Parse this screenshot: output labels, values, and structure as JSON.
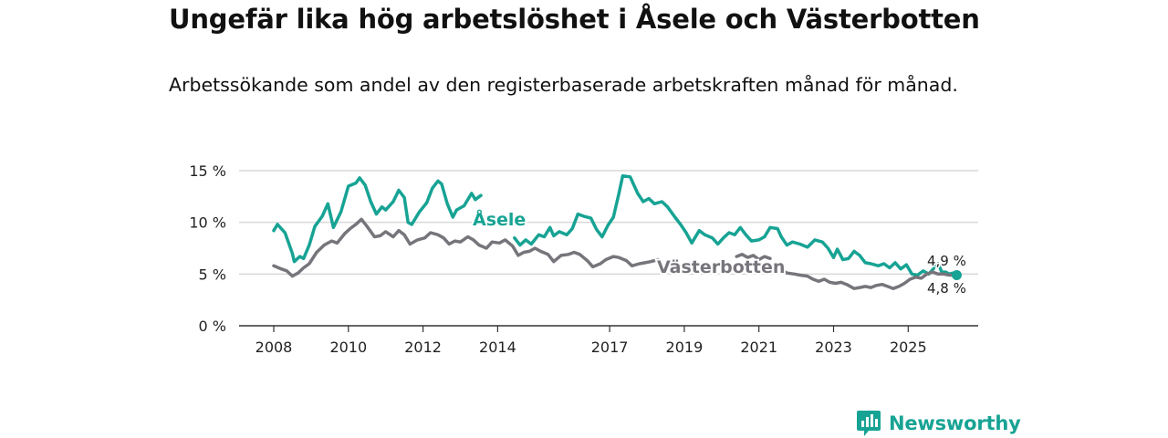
{
  "title": "Ungefär lika hög arbetslöshet i Åsele och Västerbotten",
  "subtitle": "Arbetssökande som andel av den registerbaserade arbetskraften månad för månad.",
  "brand": "Newsworthy",
  "colors": {
    "asele": "#17a394",
    "vasterbotten": "#77757b",
    "grid": "#d9d9d9",
    "axis": "#333333"
  },
  "chart_data": {
    "type": "line",
    "title": "Ungefär lika hög arbetslöshet i Åsele och Västerbotten",
    "xlabel": "",
    "ylabel": "",
    "ylim": [
      0,
      15
    ],
    "xlim": [
      2007.6,
      2026.4
    ],
    "grid": true,
    "legend": "inline labels",
    "y_ticks": [
      0,
      5,
      10,
      15
    ],
    "y_tick_labels": [
      "0 %",
      "5 %",
      "10 %",
      "15 %"
    ],
    "x_ticks": [
      2008,
      2010,
      2012,
      2014,
      2017,
      2019,
      2021,
      2023,
      2025
    ],
    "x_tick_labels": [
      "2008",
      "2010",
      "2012",
      "2014",
      "2017",
      "2019",
      "2021",
      "2023",
      "2025"
    ],
    "series": [
      {
        "name": "Åsele",
        "label": "Åsele",
        "end_label": "4,9 %",
        "points": [
          [
            2008.0,
            9.2
          ],
          [
            2008.1,
            9.8
          ],
          [
            2008.3,
            9.0
          ],
          [
            2008.5,
            7.0
          ],
          [
            2008.55,
            6.2
          ],
          [
            2008.7,
            6.7
          ],
          [
            2008.8,
            6.5
          ],
          [
            2008.95,
            7.8
          ],
          [
            2009.1,
            9.6
          ],
          [
            2009.3,
            10.6
          ],
          [
            2009.45,
            11.8
          ],
          [
            2009.6,
            9.5
          ],
          [
            2009.8,
            11.0
          ],
          [
            2010.0,
            13.5
          ],
          [
            2010.2,
            13.8
          ],
          [
            2010.3,
            14.3
          ],
          [
            2010.45,
            13.6
          ],
          [
            2010.6,
            12.0
          ],
          [
            2010.75,
            10.8
          ],
          [
            2010.9,
            11.5
          ],
          [
            2011.0,
            11.2
          ],
          [
            2011.2,
            12.0
          ],
          [
            2011.35,
            13.1
          ],
          [
            2011.5,
            12.4
          ],
          [
            2011.6,
            10.0
          ],
          [
            2011.7,
            9.8
          ],
          [
            2011.9,
            11.0
          ],
          [
            2012.1,
            11.9
          ],
          [
            2012.25,
            13.3
          ],
          [
            2012.4,
            14.0
          ],
          [
            2012.5,
            13.7
          ],
          [
            2012.65,
            11.8
          ],
          [
            2012.8,
            10.5
          ],
          [
            2012.9,
            11.2
          ],
          [
            2013.1,
            11.6
          ],
          [
            2013.3,
            12.8
          ],
          [
            2013.4,
            12.2
          ],
          [
            2013.55,
            12.6
          ],
          null,
          [
            2014.45,
            8.5
          ],
          [
            2014.6,
            7.8
          ],
          [
            2014.75,
            8.3
          ],
          [
            2014.9,
            7.9
          ],
          [
            2015.1,
            8.8
          ],
          [
            2015.25,
            8.6
          ],
          [
            2015.4,
            9.5
          ],
          [
            2015.5,
            8.7
          ],
          [
            2015.65,
            9.1
          ],
          [
            2015.85,
            8.8
          ],
          [
            2016.0,
            9.4
          ],
          [
            2016.15,
            10.8
          ],
          [
            2016.3,
            10.6
          ],
          [
            2016.5,
            10.4
          ],
          [
            2016.65,
            9.3
          ],
          [
            2016.8,
            8.6
          ],
          [
            2016.95,
            9.7
          ],
          [
            2017.1,
            10.5
          ],
          [
            2017.25,
            12.8
          ],
          [
            2017.35,
            14.5
          ],
          [
            2017.55,
            14.4
          ],
          [
            2017.75,
            12.8
          ],
          [
            2017.9,
            12.0
          ],
          [
            2018.05,
            12.3
          ],
          [
            2018.2,
            11.8
          ],
          [
            2018.4,
            12.0
          ],
          [
            2018.55,
            11.5
          ],
          [
            2018.75,
            10.5
          ],
          [
            2018.9,
            9.8
          ],
          [
            2019.05,
            9.0
          ],
          [
            2019.2,
            8.0
          ],
          [
            2019.4,
            9.2
          ],
          [
            2019.55,
            8.8
          ],
          [
            2019.75,
            8.5
          ],
          [
            2019.9,
            7.9
          ],
          [
            2020.05,
            8.5
          ],
          [
            2020.2,
            9.0
          ],
          [
            2020.35,
            8.8
          ],
          [
            2020.5,
            9.5
          ],
          [
            2020.65,
            8.8
          ],
          [
            2020.8,
            8.2
          ],
          [
            2021.0,
            8.3
          ],
          [
            2021.15,
            8.6
          ],
          [
            2021.3,
            9.5
          ],
          [
            2021.5,
            9.4
          ],
          [
            2021.6,
            8.6
          ],
          [
            2021.75,
            7.8
          ],
          [
            2021.9,
            8.1
          ],
          [
            2022.1,
            7.9
          ],
          [
            2022.3,
            7.6
          ],
          [
            2022.5,
            8.3
          ],
          [
            2022.7,
            8.1
          ],
          [
            2022.85,
            7.5
          ],
          [
            2023.0,
            6.6
          ],
          [
            2023.1,
            7.4
          ],
          [
            2023.25,
            6.4
          ],
          [
            2023.4,
            6.5
          ],
          [
            2023.55,
            7.2
          ],
          [
            2023.7,
            6.8
          ],
          [
            2023.85,
            6.1
          ],
          [
            2024.0,
            6.0
          ],
          [
            2024.2,
            5.8
          ],
          [
            2024.35,
            6.0
          ],
          [
            2024.5,
            5.6
          ],
          [
            2024.65,
            6.1
          ],
          [
            2024.8,
            5.5
          ],
          [
            2024.95,
            5.9
          ],
          [
            2025.1,
            5.0
          ],
          [
            2025.25,
            4.9
          ],
          [
            2025.4,
            5.3
          ],
          [
            2025.55,
            5.0
          ],
          [
            2025.7,
            5.6
          ],
          [
            2025.8,
            6.0
          ],
          [
            2025.9,
            5.2
          ],
          [
            2026.0,
            5.2
          ],
          [
            2026.1,
            5.0
          ],
          [
            2026.2,
            5.1
          ],
          [
            2026.3,
            4.9
          ]
        ]
      },
      {
        "name": "Västerbotten",
        "label": "Västerbotten",
        "end_label": "4,8 %",
        "points": [
          [
            2008.0,
            5.8
          ],
          [
            2008.2,
            5.5
          ],
          [
            2008.35,
            5.3
          ],
          [
            2008.5,
            4.8
          ],
          [
            2008.65,
            5.1
          ],
          [
            2008.8,
            5.6
          ],
          [
            2008.95,
            6.0
          ],
          [
            2009.15,
            7.1
          ],
          [
            2009.35,
            7.8
          ],
          [
            2009.55,
            8.2
          ],
          [
            2009.7,
            8.0
          ],
          [
            2009.9,
            8.9
          ],
          [
            2010.05,
            9.4
          ],
          [
            2010.2,
            9.8
          ],
          [
            2010.35,
            10.3
          ],
          [
            2010.5,
            9.6
          ],
          [
            2010.7,
            8.6
          ],
          [
            2010.85,
            8.7
          ],
          [
            2011.0,
            9.1
          ],
          [
            2011.2,
            8.6
          ],
          [
            2011.35,
            9.2
          ],
          [
            2011.5,
            8.8
          ],
          [
            2011.65,
            7.9
          ],
          [
            2011.85,
            8.3
          ],
          [
            2012.05,
            8.5
          ],
          [
            2012.2,
            9.0
          ],
          [
            2012.4,
            8.8
          ],
          [
            2012.55,
            8.5
          ],
          [
            2012.7,
            7.9
          ],
          [
            2012.85,
            8.2
          ],
          [
            2013.0,
            8.1
          ],
          [
            2013.2,
            8.6
          ],
          [
            2013.35,
            8.3
          ],
          [
            2013.5,
            7.8
          ],
          [
            2013.7,
            7.5
          ],
          [
            2013.85,
            8.1
          ],
          [
            2014.05,
            8.0
          ],
          [
            2014.2,
            8.3
          ],
          [
            2014.4,
            7.7
          ],
          [
            2014.55,
            6.8
          ],
          [
            2014.7,
            7.1
          ],
          [
            2014.85,
            7.2
          ],
          [
            2015.0,
            7.5
          ],
          [
            2015.15,
            7.2
          ],
          [
            2015.35,
            6.9
          ],
          [
            2015.5,
            6.2
          ],
          [
            2015.7,
            6.8
          ],
          [
            2015.9,
            6.9
          ],
          [
            2016.05,
            7.1
          ],
          [
            2016.2,
            6.9
          ],
          [
            2016.4,
            6.3
          ],
          [
            2016.55,
            5.7
          ],
          [
            2016.75,
            6.0
          ],
          [
            2016.9,
            6.4
          ],
          [
            2017.1,
            6.7
          ],
          [
            2017.25,
            6.6
          ],
          [
            2017.45,
            6.3
          ],
          [
            2017.6,
            5.8
          ],
          [
            2017.8,
            6.0
          ],
          [
            2017.95,
            6.1
          ],
          [
            2018.1,
            6.2
          ],
          [
            2018.3,
            6.4
          ],
          null,
          [
            2020.4,
            6.7
          ],
          [
            2020.55,
            6.9
          ],
          [
            2020.7,
            6.6
          ],
          [
            2020.85,
            6.8
          ],
          [
            2021.0,
            6.4
          ],
          [
            2021.15,
            6.7
          ],
          [
            2021.3,
            6.5
          ],
          null,
          [
            2021.55,
            5.5
          ],
          [
            2021.75,
            5.1
          ],
          [
            2021.95,
            5.0
          ],
          [
            2022.1,
            4.9
          ],
          [
            2022.3,
            4.8
          ],
          [
            2022.45,
            4.5
          ],
          [
            2022.6,
            4.3
          ],
          [
            2022.75,
            4.5
          ],
          [
            2022.9,
            4.2
          ],
          [
            2023.05,
            4.1
          ],
          [
            2023.2,
            4.2
          ],
          [
            2023.35,
            4.0
          ],
          [
            2023.55,
            3.6
          ],
          [
            2023.7,
            3.7
          ],
          [
            2023.85,
            3.8
          ],
          [
            2024.0,
            3.7
          ],
          [
            2024.15,
            3.9
          ],
          [
            2024.3,
            4.0
          ],
          [
            2024.45,
            3.8
          ],
          [
            2024.6,
            3.6
          ],
          [
            2024.75,
            3.8
          ],
          [
            2024.9,
            4.1
          ],
          [
            2025.05,
            4.5
          ],
          [
            2025.2,
            4.7
          ],
          [
            2025.35,
            4.6
          ],
          [
            2025.5,
            5.0
          ],
          [
            2025.65,
            5.2
          ],
          [
            2025.8,
            5.0
          ],
          [
            2025.95,
            5.0
          ],
          [
            2026.1,
            4.9
          ],
          [
            2026.25,
            4.9
          ],
          [
            2026.3,
            4.8
          ]
        ]
      }
    ]
  }
}
